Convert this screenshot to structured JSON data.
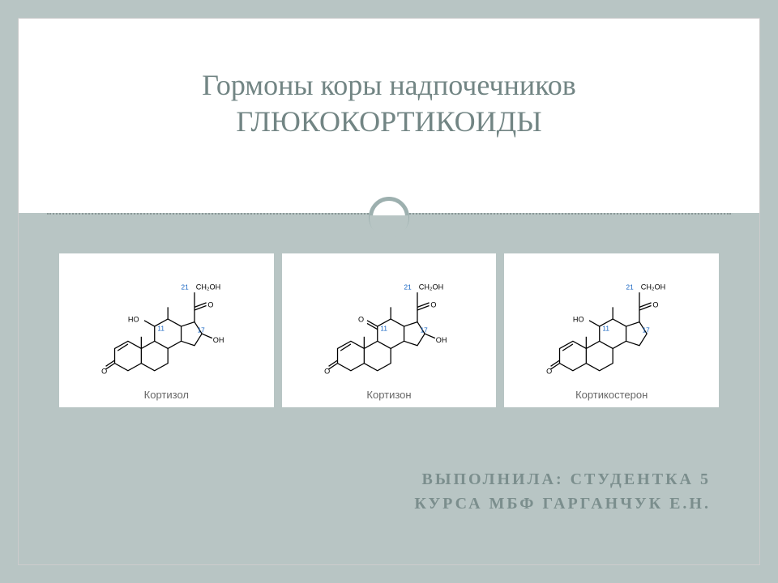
{
  "title_line1": "Гормоны коры надпочечников",
  "title_line2": "ГЛЮКОКОРТИКОИДЫ",
  "author_line1": "ВЫПОЛНИЛА: СТУДЕНТКА 5",
  "author_line2": "КУРСА МБФ ГАРГАНЧУК Е.Н.",
  "molecules": [
    {
      "name": "Кортизол",
      "c21_label": "21",
      "c21_group": "CH₂OH",
      "c17_label": "17",
      "c17_group": "OH",
      "c11_label": "11",
      "c11_left_group": "HO",
      "c11_is_ketone": false,
      "has_c17_oh": true
    },
    {
      "name": "Кортизон",
      "c21_label": "21",
      "c21_group": "CH₂OH",
      "c17_label": "17",
      "c17_group": "OH",
      "c11_label": "11",
      "c11_left_group": "O",
      "c11_is_ketone": true,
      "has_c17_oh": true
    },
    {
      "name": "Кортикостерон",
      "c21_label": "21",
      "c21_group": "CH₂OH",
      "c17_label": "17",
      "c17_group": "",
      "c11_label": "11",
      "c11_left_group": "HO",
      "c11_is_ketone": false,
      "has_c17_oh": false
    }
  ],
  "style": {
    "bond_color": "#000000",
    "bond_width": 1.4,
    "atom_label_color": "#000000",
    "num_label_color": "#1060c0",
    "label_fontsize": 10,
    "num_fontsize": 9,
    "molecule_bg": "#ffffff",
    "caption_color": "#666666",
    "caption_fontsize": 13
  }
}
